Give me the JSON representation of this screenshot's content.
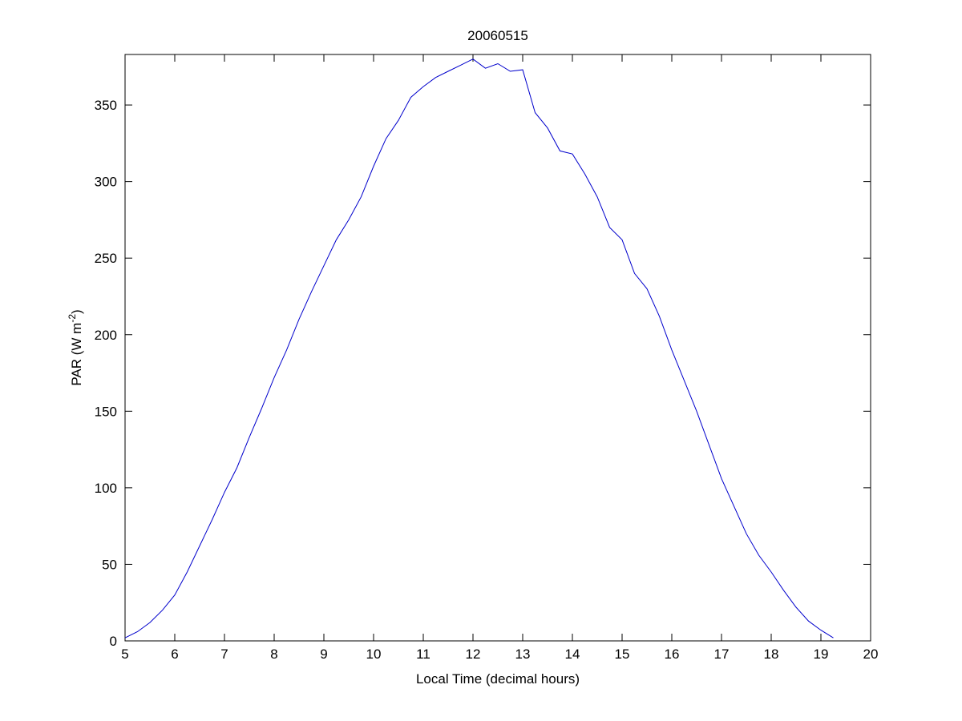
{
  "chart_data": {
    "type": "line",
    "title": "20060515",
    "xlabel": "Local Time (decimal hours)",
    "ylabel": "PAR (W m",
    "ylabel_superscript": "-2",
    "ylabel_suffix": ")",
    "xlim": [
      5,
      20
    ],
    "ylim": [
      0,
      383
    ],
    "xticks": [
      5,
      6,
      7,
      8,
      9,
      10,
      11,
      12,
      13,
      14,
      15,
      16,
      17,
      18,
      19,
      20
    ],
    "yticks": [
      0,
      50,
      100,
      150,
      200,
      250,
      300,
      350
    ],
    "grid": false,
    "series": [
      {
        "name": "PAR",
        "color": "#0000cc",
        "x": [
          5.0,
          5.25,
          5.5,
          5.75,
          6.0,
          6.25,
          6.5,
          6.75,
          7.0,
          7.25,
          7.5,
          7.75,
          8.0,
          8.25,
          8.5,
          8.75,
          9.0,
          9.25,
          9.5,
          9.75,
          10.0,
          10.25,
          10.5,
          10.75,
          11.0,
          11.25,
          11.5,
          11.75,
          12.0,
          12.25,
          12.5,
          12.75,
          13.0,
          13.25,
          13.5,
          13.75,
          14.0,
          14.25,
          14.5,
          14.75,
          15.0,
          15.25,
          15.5,
          15.75,
          16.0,
          16.25,
          16.5,
          16.75,
          17.0,
          17.25,
          17.5,
          17.75,
          18.0,
          18.25,
          18.5,
          18.75,
          19.0,
          19.25
        ],
        "values": [
          2,
          6,
          12,
          20,
          30,
          45,
          62,
          79,
          97,
          113,
          133,
          152,
          172,
          190,
          210,
          228,
          245,
          262,
          275,
          290,
          310,
          328,
          340,
          355,
          362,
          368,
          372,
          376,
          380,
          374,
          377,
          372,
          373,
          345,
          335,
          320,
          318,
          305,
          290,
          270,
          262,
          240,
          230,
          212,
          190,
          170,
          150,
          128,
          106,
          88,
          70,
          56,
          45,
          33,
          22,
          13,
          7,
          2
        ]
      }
    ]
  }
}
